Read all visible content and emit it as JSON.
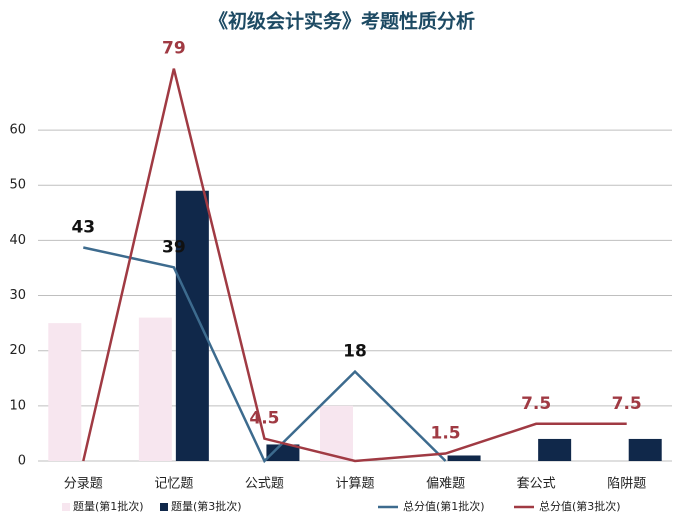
{
  "chart_data": {
    "type": "bar-line",
    "title": "《初级会计实务》考题性质分析",
    "categories": [
      "分录题",
      "记忆题",
      "公式题",
      "计算题",
      "偏难题",
      "套公式",
      "陷阱题"
    ],
    "series": [
      {
        "name": "题量(第1批次)",
        "type": "bar",
        "color": "#f7e6ef",
        "values": [
          25,
          26,
          0,
          10,
          0,
          0,
          0
        ]
      },
      {
        "name": "题量(第3批次)",
        "type": "bar",
        "color": "#10284a",
        "values": [
          0,
          49,
          3,
          0,
          1,
          4,
          4
        ]
      },
      {
        "name": "总分值(第1批次)",
        "type": "line",
        "axis": "y2",
        "color": "#3d6b8e",
        "label_color": "#111111",
        "values": [
          43,
          39,
          0,
          18,
          0,
          null,
          null
        ],
        "value_labels": [
          "43",
          "39",
          null,
          "18",
          null,
          null,
          null
        ]
      },
      {
        "name": "总分值(第3批次)",
        "type": "line",
        "axis": "y2",
        "color": "#a03a43",
        "label_color": "#a03a43",
        "values": [
          0,
          79,
          4.5,
          0,
          1.5,
          7.5,
          7.5
        ],
        "value_labels": [
          null,
          "79",
          "4.5",
          null,
          "1.5",
          "7.5",
          "7.5"
        ]
      }
    ],
    "ylim": [
      0,
      66
    ],
    "yticks": [
      0,
      10,
      20,
      30,
      40,
      50,
      60
    ],
    "y2lim": [
      0,
      73.3
    ],
    "grid": true,
    "legend": "bottom"
  }
}
